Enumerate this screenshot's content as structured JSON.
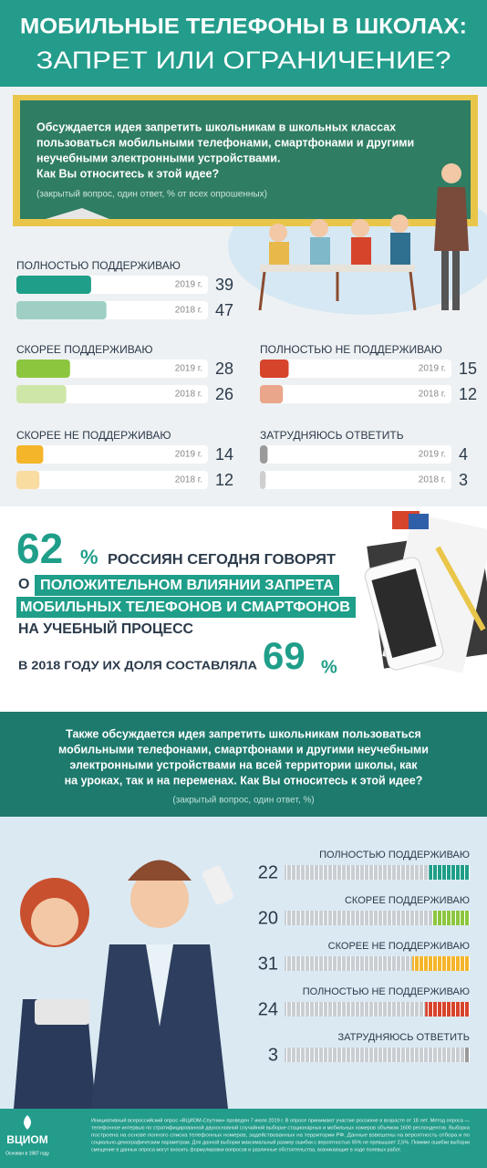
{
  "header": {
    "title_line1": "МОБИЛЬНЫЕ ТЕЛЕФОНЫ В ШКОЛАХ:",
    "title_line2": "ЗАПРЕТ ИЛИ ОГРАНИЧЕНИЕ?"
  },
  "question1": {
    "lines": [
      "Обсуждается идея запретить школьникам в школьных классах",
      "пользоваться мобильными телефонами, смартфонами и другими",
      "неучебными электронными устройствами.",
      "Как Вы относитесь к этой идее?"
    ],
    "note": "(закрытый вопрос, один ответ, % от всех опрошенных)"
  },
  "chart_data": [
    {
      "type": "bar",
      "categories": [
        "ПОЛНОСТЬЮ ПОДДЕРЖИВАЮ",
        "СКОРЕЕ ПОДДЕРЖИВАЮ",
        "ПОЛНОСТЬЮ НЕ ПОДДЕРЖИВАЮ",
        "СКОРЕЕ НЕ ПОДДЕРЖИВАЮ",
        "ЗАТРУДНЯЮСЬ ОТВЕТИТЬ"
      ],
      "series": [
        {
          "name": "2019 г.",
          "colors": [
            "#1f9e89",
            "#8cc63f",
            "#d7442c",
            "#f5b52a",
            "#9a9a9a"
          ],
          "values": [
            39,
            28,
            15,
            14,
            4
          ]
        },
        {
          "name": "2018 г.",
          "colors": [
            "#9fcfc4",
            "#cfe6a9",
            "#eaa68b",
            "#f9dca0",
            "#cfcfcf"
          ],
          "values": [
            47,
            26,
            12,
            12,
            3
          ]
        }
      ],
      "xlim": [
        0,
        100
      ]
    },
    {
      "type": "segmented",
      "categories": [
        "ПОЛНОСТЬЮ ПОДДЕРЖИВАЮ",
        "СКОРЕЕ ПОДДЕРЖИВАЮ",
        "СКОРЕЕ НЕ ПОДДЕРЖИВАЮ",
        "ПОЛНОСТЬЮ НЕ ПОДДЕРЖИВАЮ",
        "ЗАТРУДНЯЮСЬ ОТВЕТИТЬ"
      ],
      "values": [
        22,
        20,
        31,
        24,
        3
      ],
      "colors": [
        "#1f9e89",
        "#8cc63f",
        "#f5b52a",
        "#d7442c",
        "#9a9a9a"
      ],
      "xlim": [
        0,
        100
      ]
    }
  ],
  "highlight": {
    "value": 62,
    "unit": "%",
    "line1": "РОССИЯН СЕГОДНЯ ГОВОРЯТ",
    "line2_prefix": "О",
    "line2_box": "ПОЛОЖИТЕЛЬНОМ ВЛИЯНИИ ЗАПРЕТА",
    "line3_box": "МОБИЛЬНЫХ ТЕЛЕФОНОВ И СМАРТФОНОВ",
    "line4": "НА УЧЕБНЫЙ ПРОЦЕСС",
    "prior_text": "В 2018 ГОДУ ИХ ДОЛЯ СОСТАВЛЯЛА",
    "prior_value": 69,
    "prior_unit": "%"
  },
  "question2": {
    "lines": [
      "Также обсуждается идея запретить школьникам пользоваться",
      "мобильными телефонами, смартфонами и другими неучебными",
      "электронными устройствами на всей территории школы, как",
      "на уроках, так и на переменах. Как Вы относитесь к этой идее?"
    ],
    "note": "(закрытый вопрос, один ответ, %)"
  },
  "footer": {
    "logo": "ВЦИОМ",
    "tagline": "Основан в 1987 году",
    "text": [
      "Инициативный всероссийский опрос «ВЦИОМ-Спутник» проведен 7 июля 2019 г. В опросе принимают участие россияне в возрасте от 18 лет. Метод опроса —",
      "телефонное интервью по стратифицированной двухосновной случайной выборке стационарных и мобильных номеров объемом 1600 респондентов. Выборка",
      "построена на основе полного списка телефонных номеров, задействованных на территории РФ. Данные взвешены на вероятность отбора и по",
      "социально-демографическим параметрам. Для данной выборки максимальный размер ошибки с вероятностью 95% не превышает 2,5%. Помимо ошибки выборки",
      "смещение в данных опроса могут вносить формулировки вопросов и различные обстоятельства, возникающие в ходе полевых работ."
    ]
  }
}
